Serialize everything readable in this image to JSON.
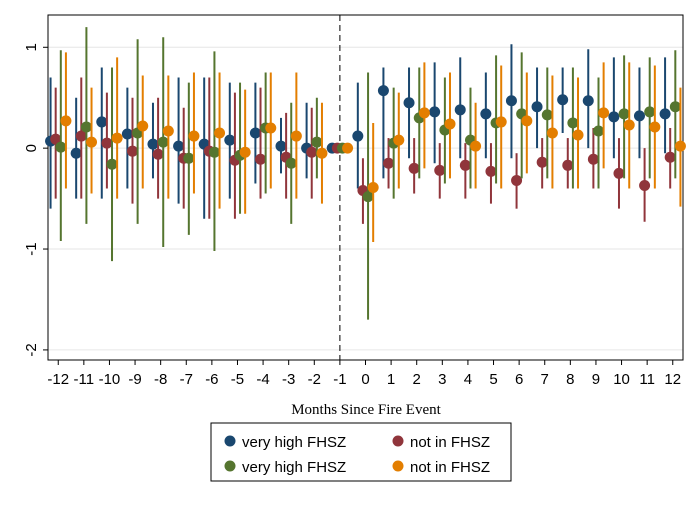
{
  "chart_data": {
    "type": "scatter",
    "xlabel": "Months Since Fire Event",
    "ylabel": "",
    "x_ticks": [
      -12,
      -11,
      -10,
      -9,
      -8,
      -7,
      -6,
      -5,
      -4,
      -3,
      -2,
      -1,
      0,
      1,
      2,
      3,
      4,
      5,
      6,
      7,
      8,
      9,
      10,
      11,
      12
    ],
    "y_ticks": [
      1,
      0,
      -1,
      -2
    ],
    "xlim": [
      -12.4,
      12.4
    ],
    "ylim": [
      -2.1,
      1.32
    ],
    "grid": "horizontal",
    "reference_line_x": -1,
    "legend_position": "bottom",
    "x": [
      -12,
      -11,
      -10,
      -9,
      -8,
      -7,
      -6,
      -5,
      -4,
      -3,
      -2,
      -1,
      0,
      1,
      2,
      3,
      4,
      5,
      6,
      7,
      8,
      9,
      10,
      11,
      12
    ],
    "series": [
      {
        "name": "very high FHSZ",
        "color": "#1a476f",
        "offset": -0.3,
        "values": [
          0.07,
          -0.05,
          0.26,
          0.14,
          0.04,
          0.02,
          0.04,
          0.08,
          0.15,
          0.02,
          0.0,
          0.0,
          0.12,
          0.57,
          0.45,
          0.36,
          0.38,
          0.34,
          0.47,
          0.41,
          0.48,
          0.47,
          0.31,
          0.32,
          0.34
        ],
        "ci_low": [
          -0.6,
          -0.5,
          -0.5,
          -0.4,
          -0.3,
          -0.55,
          -0.7,
          -0.5,
          -0.35,
          -0.25,
          -0.3,
          0.0,
          -0.4,
          -0.3,
          -0.1,
          -0.15,
          -0.1,
          -0.1,
          -0.1,
          0.0,
          0.15,
          0.0,
          -0.1,
          -0.1,
          -0.05
        ],
        "ci_high": [
          0.7,
          0.5,
          0.8,
          0.6,
          0.45,
          0.7,
          0.7,
          0.65,
          0.65,
          0.3,
          0.45,
          0.0,
          0.65,
          0.8,
          0.8,
          0.85,
          0.9,
          0.75,
          1.03,
          0.8,
          0.8,
          0.98,
          0.9,
          0.8,
          0.9
        ]
      },
      {
        "name": "not in FHSZ",
        "color": "#90353b",
        "offset": -0.1,
        "values": [
          0.09,
          0.12,
          0.05,
          -0.03,
          -0.06,
          -0.1,
          -0.03,
          -0.12,
          -0.11,
          -0.09,
          -0.04,
          0.0,
          -0.42,
          -0.15,
          -0.2,
          -0.22,
          -0.17,
          -0.23,
          -0.32,
          -0.14,
          -0.17,
          -0.11,
          -0.25,
          -0.37,
          -0.09
        ],
        "ci_low": [
          -0.5,
          -0.5,
          -0.4,
          -0.55,
          -0.5,
          -0.6,
          -0.7,
          -0.7,
          -0.5,
          -0.5,
          -0.5,
          0.0,
          -0.75,
          -0.4,
          -0.45,
          -0.5,
          -0.5,
          -0.55,
          -0.6,
          -0.4,
          -0.4,
          -0.4,
          -0.6,
          -0.73,
          -0.4
        ],
        "ci_high": [
          0.6,
          0.7,
          0.55,
          0.5,
          0.5,
          0.4,
          0.7,
          0.55,
          0.6,
          0.35,
          0.4,
          0.0,
          -0.1,
          0.1,
          0.1,
          0.05,
          0.05,
          0.05,
          -0.05,
          0.1,
          0.1,
          0.2,
          0.1,
          0.0,
          0.2
        ]
      },
      {
        "name": "very high FHSZ",
        "color": "#55752f",
        "offset": 0.1,
        "values": [
          0.01,
          0.21,
          -0.16,
          0.15,
          0.06,
          -0.1,
          -0.04,
          -0.07,
          0.2,
          -0.15,
          0.06,
          0.0,
          -0.48,
          0.05,
          0.3,
          0.18,
          0.08,
          0.25,
          0.34,
          0.33,
          0.25,
          0.17,
          0.34,
          0.36,
          0.41
        ],
        "ci_low": [
          -0.92,
          -0.75,
          -1.12,
          -0.75,
          -0.98,
          -0.86,
          -1.02,
          -0.65,
          -0.45,
          -0.75,
          -0.3,
          0.0,
          -1.7,
          -0.5,
          -0.3,
          -0.35,
          -0.4,
          -0.35,
          -0.3,
          -0.3,
          -0.4,
          -0.4,
          -0.3,
          -0.3,
          -0.3
        ],
        "ci_high": [
          0.97,
          1.2,
          0.8,
          1.08,
          1.1,
          0.65,
          0.96,
          0.65,
          0.75,
          0.45,
          0.5,
          0.0,
          0.75,
          0.6,
          0.8,
          0.7,
          0.6,
          0.92,
          0.95,
          0.8,
          0.8,
          0.7,
          0.92,
          0.9,
          0.97
        ]
      },
      {
        "name": "not in FHSZ",
        "color": "#e37e00",
        "offset": 0.3,
        "values": [
          0.27,
          0.06,
          0.1,
          0.22,
          0.17,
          0.12,
          0.15,
          -0.04,
          0.2,
          0.12,
          -0.05,
          0.0,
          -0.39,
          0.08,
          0.35,
          0.24,
          0.02,
          0.26,
          0.27,
          0.15,
          0.13,
          0.35,
          0.23,
          0.21,
          0.02
        ],
        "ci_low": [
          -0.4,
          -0.45,
          -0.5,
          -0.4,
          -0.5,
          -0.45,
          -0.6,
          -0.65,
          -0.4,
          -0.5,
          -0.55,
          0.0,
          -0.93,
          -0.4,
          -0.2,
          -0.3,
          -0.4,
          -0.4,
          -0.25,
          -0.4,
          -0.4,
          -0.2,
          -0.4,
          -0.4,
          -0.58
        ],
        "ci_high": [
          0.95,
          0.6,
          0.9,
          0.72,
          0.72,
          0.75,
          0.75,
          0.58,
          0.75,
          0.75,
          0.45,
          0.0,
          0.25,
          0.55,
          0.85,
          0.75,
          0.45,
          0.82,
          0.75,
          0.72,
          0.7,
          0.85,
          0.85,
          0.82,
          0.6
        ]
      }
    ]
  },
  "legend": {
    "items": [
      {
        "label": "very high FHSZ",
        "color": "#1a476f"
      },
      {
        "label": "not in FHSZ",
        "color": "#90353b"
      },
      {
        "label": "very high FHSZ",
        "color": "#55752f"
      },
      {
        "label": "not in FHSZ",
        "color": "#e37e00"
      }
    ]
  }
}
